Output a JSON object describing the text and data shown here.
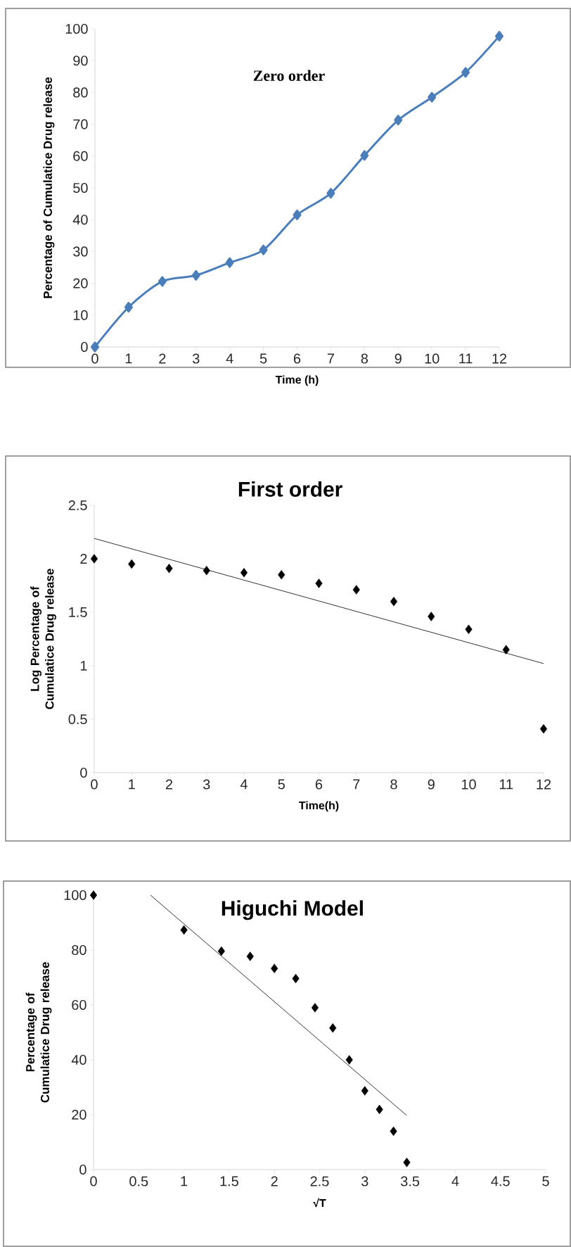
{
  "chart_data": [
    {
      "type": "line",
      "title": "Zero order",
      "xlabel": "Time (h)",
      "ylabel": "Percentage of Cumulatice Drug release",
      "x": [
        0,
        1,
        2,
        3,
        4,
        5,
        6,
        7,
        8,
        9,
        10,
        11,
        12
      ],
      "xlim": [
        0,
        12
      ],
      "xticks": [
        0,
        1,
        2,
        3,
        4,
        5,
        6,
        7,
        8,
        9,
        10,
        11,
        12
      ],
      "ylim": [
        0,
        100
      ],
      "yticks": [
        0,
        10,
        20,
        30,
        40,
        50,
        60,
        70,
        80,
        90,
        100
      ],
      "marker": "diamond",
      "grid": false,
      "series": [
        {
          "color": "#4a7ebb",
          "values": [
            0,
            12.5,
            20.6,
            22.5,
            26.5,
            30.5,
            41.5,
            48.3,
            60.2,
            71.3,
            78.5,
            86.3,
            97.7
          ]
        }
      ]
    },
    {
      "type": "scatter",
      "title": "First order",
      "xlabel": "Time(h)",
      "ylabel": "Log Percentage of Cumulatice Drug release",
      "x": [
        0,
        1,
        2,
        3,
        4,
        5,
        6,
        7,
        8,
        9,
        10,
        11,
        12
      ],
      "xlim": [
        0,
        12
      ],
      "xticks": [
        0,
        1,
        2,
        3,
        4,
        5,
        6,
        7,
        8,
        9,
        10,
        11,
        12
      ],
      "ylim": [
        0,
        2.5
      ],
      "yticks": [
        0,
        0.5,
        1,
        1.5,
        2,
        2.5
      ],
      "marker": "diamond",
      "grid": false,
      "series": [
        {
          "color": "#000000",
          "values": [
            2.0,
            1.95,
            1.91,
            1.89,
            1.87,
            1.85,
            1.77,
            1.71,
            1.6,
            1.46,
            1.34,
            1.15,
            0.41
          ]
        },
        {
          "type": "line",
          "marker": "none",
          "color": "#000000",
          "x": [
            0,
            12
          ],
          "values": [
            2.19,
            1.02
          ]
        }
      ]
    },
    {
      "type": "scatter",
      "title": "Higuchi Model",
      "xlabel": "√T",
      "ylabel": "Percentage of Cumulatice Drug release",
      "x": [
        0,
        1,
        1.414,
        1.732,
        2,
        2.236,
        2.449,
        2.646,
        2.828,
        3,
        3.162,
        3.317,
        3.464
      ],
      "xlim": [
        0,
        5
      ],
      "xticks": [
        0,
        0.5,
        1,
        1.5,
        2,
        2.5,
        3,
        3.5,
        4,
        4.5,
        5
      ],
      "ylim": [
        0,
        100
      ],
      "yticks": [
        0,
        20,
        40,
        60,
        80,
        100
      ],
      "marker": "diamond",
      "grid": false,
      "series": [
        {
          "color": "#000000",
          "values": [
            100,
            87.3,
            79.6,
            77.7,
            73.3,
            69.6,
            59,
            51.6,
            40,
            28.7,
            21.9,
            14,
            2.6
          ]
        },
        {
          "type": "line",
          "marker": "none",
          "color": "#000000",
          "x": [
            0.63,
            3.46
          ],
          "values": [
            100,
            19.8
          ]
        }
      ]
    }
  ]
}
